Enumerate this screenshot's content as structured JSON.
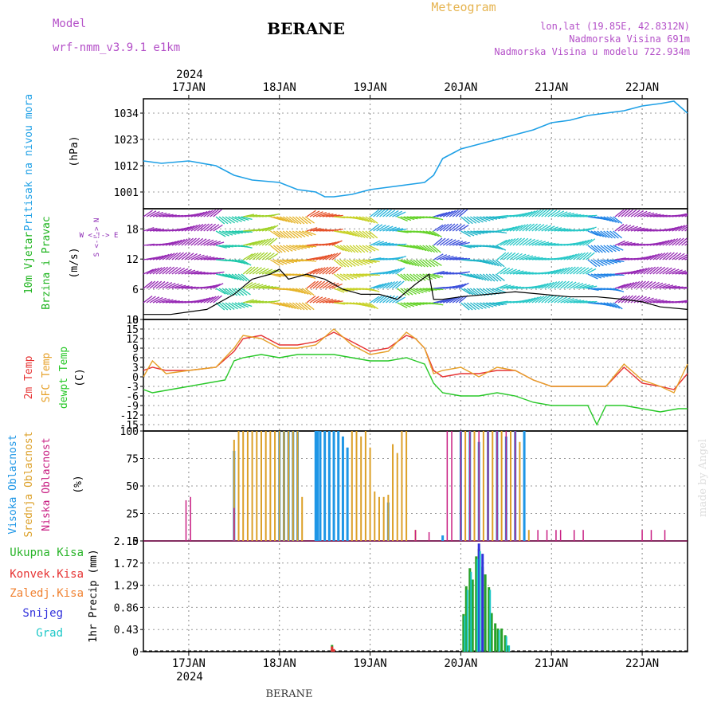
{
  "header": {
    "model_label": "Model",
    "model_name": "wrf-nmm_v3.9.1 e1km",
    "station": "BERANE",
    "meteogram": "Meteogram",
    "coords": "lon,lat (19.85E, 42.8312N)",
    "altitude": "Nadmorska Visina 691m",
    "model_altitude": "Nadmorska Visina u modelu 722.934m"
  },
  "footer": {
    "station": "BERANE",
    "credit": "made by Angel"
  },
  "time_axis": {
    "year": "2024",
    "dates": [
      "17JAN",
      "18JAN",
      "19JAN",
      "20JAN",
      "21JAN",
      "22JAN"
    ],
    "range": [
      16.5,
      22.5
    ]
  },
  "colors": {
    "pressure": "#1ea0e6",
    "temp": "#e63232",
    "sfc_temp": "#e6a028",
    "dewpt": "#28c828",
    "high_cloud": "#1e96e6",
    "mid_cloud": "#dca028",
    "low_cloud": "#c81e82",
    "total_precip": "#28a028",
    "conv_precip": "#e63232",
    "frz_precip": "#f08232",
    "snow": "#3232dc",
    "graupel": "#1ec8c8",
    "wind_label": "#1eb41e",
    "wind_purple": "#8c28b4"
  },
  "panels": {
    "pressure": {
      "label1": "Pritisak na nivou mora",
      "label2": "(hPa)",
      "ticks": [
        "1034",
        "1023",
        "1012",
        "1001"
      ]
    },
    "wind": {
      "label1": "10m Vjetar",
      "label2": "Brzina i Pravac",
      "label3": "(m/s)",
      "compass": "W <-!-> E",
      "compass2": "S <-!-> N",
      "ticks": [
        "18",
        "12",
        "6",
        "0"
      ]
    },
    "temp": {
      "label1": "2m Temp",
      "label2": "SFC Temp",
      "label3": "dewpt Temp",
      "label4": "(C)",
      "ticks": [
        "18",
        "15",
        "12",
        "9",
        "6",
        "3",
        "0",
        "-3",
        "-6",
        "-9",
        "-12",
        "-15"
      ]
    },
    "cloud": {
      "label1": "Visoka Oblacnost",
      "label2": "Srednja Oblacnost",
      "label3": "Niska Oblacnost",
      "label4": "(%)",
      "ticks": [
        "100",
        "75",
        "50",
        "25",
        "0"
      ]
    },
    "precip": {
      "label": "1hr Precip (mm)",
      "ticks": [
        "2.15",
        "1.72",
        "1.29",
        "0.86",
        "0.43",
        "0"
      ],
      "legend": [
        "Ukupna Kisa",
        "Konvek.Kisa",
        "Zaledj.Kisa",
        "Snijeg",
        "Grad"
      ]
    }
  },
  "chart_data": [
    {
      "type": "line",
      "title": "Pritisak na nivou mora",
      "ylabel": "(hPa)",
      "ylim": [
        994,
        1040
      ],
      "x_unit": "day of January 2024",
      "series": [
        {
          "name": "Pritisak na nivou mora",
          "x": [
            16.5,
            16.7,
            17.0,
            17.3,
            17.5,
            17.7,
            18.0,
            18.2,
            18.4,
            18.5,
            18.6,
            18.8,
            19.0,
            19.2,
            19.4,
            19.6,
            19.7,
            19.8,
            20.0,
            20.2,
            20.4,
            20.6,
            20.8,
            21.0,
            21.2,
            21.4,
            21.6,
            21.8,
            22.0,
            22.2,
            22.35,
            22.5
          ],
          "values": [
            1014,
            1013,
            1014,
            1012,
            1008,
            1006,
            1005,
            1002,
            1001,
            999,
            999,
            1000,
            1002,
            1003,
            1004,
            1005,
            1008,
            1015,
            1019,
            1021,
            1023,
            1025,
            1027,
            1030,
            1031,
            1033,
            1034,
            1035,
            1037,
            1038,
            1039,
            1034
          ]
        }
      ]
    },
    {
      "type": "line",
      "title": "10m Vjetar Brzina i Pravac",
      "ylabel": "(m/s)",
      "ylim": [
        0,
        22
      ],
      "x_unit": "day of January 2024",
      "series": [
        {
          "name": "10m Vjetar",
          "x": [
            16.5,
            16.8,
            17.0,
            17.2,
            17.3,
            17.5,
            17.7,
            17.9,
            18.0,
            18.1,
            18.3,
            18.5,
            18.7,
            18.9,
            19.1,
            19.3,
            19.5,
            19.65,
            19.7,
            19.8,
            20.0,
            20.3,
            20.6,
            20.9,
            21.2,
            21.5,
            21.8,
            22.0,
            22.2,
            22.5
          ],
          "values": [
            1,
            1,
            1.5,
            2,
            3,
            5,
            8,
            9,
            10,
            8,
            9,
            8,
            6,
            5,
            5,
            4,
            7,
            9,
            4,
            4,
            4.5,
            5,
            5.5,
            5,
            4.5,
            4.5,
            4,
            3.5,
            2.5,
            2
          ]
        }
      ]
    },
    {
      "type": "line",
      "title": "2m Temp / SFC Temp / dewpt Temp",
      "ylabel": "(C)",
      "ylim": [
        -17,
        18
      ],
      "x_unit": "day of January 2024",
      "series": [
        {
          "name": "2m Temp",
          "x": [
            16.5,
            16.6,
            16.75,
            17.0,
            17.3,
            17.5,
            17.6,
            17.8,
            18.0,
            18.2,
            18.4,
            18.6,
            18.8,
            19.0,
            19.2,
            19.4,
            19.5,
            19.6,
            19.7,
            19.8,
            20.0,
            20.2,
            20.4,
            20.6,
            20.8,
            21.0,
            21.2,
            21.4,
            21.6,
            21.8,
            22.0,
            22.2,
            22.35,
            22.5
          ],
          "values": [
            2,
            3,
            2,
            2,
            3,
            8,
            12,
            13,
            10,
            10,
            11,
            14,
            11,
            8,
            9,
            13,
            12,
            9,
            2,
            0,
            1,
            1,
            2,
            2,
            -1,
            -3,
            -3,
            -3,
            -3,
            3,
            -2,
            -3,
            -4,
            1
          ]
        },
        {
          "name": "SFC Temp",
          "x": [
            16.5,
            16.6,
            16.75,
            17.0,
            17.3,
            17.5,
            17.6,
            17.8,
            18.0,
            18.2,
            18.4,
            18.6,
            18.8,
            19.0,
            19.2,
            19.4,
            19.5,
            19.6,
            19.7,
            19.8,
            20.0,
            20.2,
            20.4,
            20.6,
            20.8,
            21.0,
            21.2,
            21.4,
            21.6,
            21.8,
            22.0,
            22.2,
            22.35,
            22.5
          ],
          "values": [
            0,
            5,
            1,
            2,
            3,
            9,
            13,
            12,
            9,
            9,
            10,
            15,
            10,
            7,
            8,
            14,
            12,
            9,
            1,
            2,
            3,
            0,
            3,
            2,
            -1,
            -3,
            -3,
            -3,
            -3,
            4,
            -1,
            -3,
            -5,
            4
          ]
        },
        {
          "name": "dewpt Temp",
          "x": [
            16.5,
            16.6,
            16.8,
            17.0,
            17.2,
            17.4,
            17.5,
            17.6,
            17.8,
            18.0,
            18.2,
            18.4,
            18.6,
            18.8,
            19.0,
            19.2,
            19.4,
            19.5,
            19.6,
            19.7,
            19.8,
            20.0,
            20.2,
            20.4,
            20.6,
            20.8,
            21.0,
            21.2,
            21.4,
            21.5,
            21.6,
            21.8,
            22.0,
            22.2,
            22.4,
            22.5
          ],
          "values": [
            -4,
            -5,
            -4,
            -3,
            -2,
            -1,
            5,
            6,
            7,
            6,
            7,
            7,
            7,
            6,
            5,
            5,
            6,
            5,
            4,
            -2,
            -5,
            -6,
            -6,
            -5,
            -6,
            -8,
            -9,
            -9,
            -9,
            -15,
            -9,
            -9,
            -10,
            -11,
            -10,
            -10
          ]
        }
      ]
    },
    {
      "type": "bar",
      "title": "Oblacnost",
      "ylabel": "(%)",
      "ylim": [
        0,
        100
      ],
      "x_unit": "day of January 2024",
      "series": [
        {
          "name": "Visoka Oblacnost",
          "x": [
            17.5,
            18.0,
            18.05,
            18.1,
            18.15,
            18.2,
            18.4,
            18.42,
            18.45,
            18.5,
            18.55,
            18.6,
            18.65,
            18.7,
            18.75,
            19.2,
            19.8,
            20.0,
            20.1,
            20.2,
            20.3,
            20.4,
            20.5,
            20.6,
            20.7
          ],
          "values": [
            82,
            100,
            100,
            100,
            100,
            100,
            100,
            100,
            100,
            100,
            100,
            100,
            100,
            95,
            85,
            35,
            5,
            100,
            100,
            90,
            100,
            100,
            95,
            100,
            100
          ]
        },
        {
          "name": "Srednja Oblacnost",
          "x": [
            17.5,
            17.55,
            17.6,
            17.65,
            17.7,
            17.75,
            17.8,
            17.85,
            17.9,
            17.95,
            18.0,
            18.05,
            18.1,
            18.15,
            18.2,
            18.25,
            18.8,
            18.85,
            18.9,
            18.95,
            19.0,
            19.05,
            19.1,
            19.15,
            19.2,
            19.25,
            19.3,
            19.35,
            19.4,
            19.5,
            20.05,
            20.15,
            20.25,
            20.35,
            20.45,
            20.55,
            20.65,
            20.75
          ],
          "values": [
            92,
            100,
            100,
            100,
            100,
            100,
            100,
            100,
            100,
            100,
            100,
            100,
            100,
            100,
            100,
            40,
            100,
            100,
            95,
            100,
            85,
            45,
            40,
            40,
            42,
            88,
            80,
            100,
            100,
            10,
            100,
            100,
            100,
            100,
            100,
            100,
            90,
            10
          ]
        },
        {
          "name": "Niska Oblacnost",
          "x": [
            16.97,
            17.02,
            17.5,
            19.5,
            19.65,
            19.85,
            19.9,
            20.0,
            20.1,
            20.2,
            20.3,
            20.4,
            20.5,
            20.6,
            20.85,
            20.95,
            21.05,
            21.1,
            21.25,
            21.35,
            22.0,
            22.1,
            22.25
          ],
          "values": [
            37,
            40,
            30,
            10,
            8,
            100,
            100,
            100,
            100,
            100,
            100,
            100,
            100,
            100,
            10,
            10,
            10,
            10,
            10,
            10,
            10,
            10,
            10
          ]
        }
      ]
    },
    {
      "type": "bar",
      "title": "1hr Precip",
      "ylabel": "1hr Precip (mm)",
      "ylim": [
        0,
        2.15
      ],
      "x_unit": "day of January 2024",
      "series": [
        {
          "name": "Ukupna Kisa",
          "x": [
            18.58,
            20.03,
            20.06,
            20.1,
            20.13,
            20.17,
            20.2,
            20.24,
            20.27,
            20.31,
            20.34,
            20.38,
            20.41,
            20.45,
            20.49,
            20.52,
            20.56,
            20.59
          ],
          "values": [
            0.13,
            0.73,
            1.27,
            1.62,
            1.4,
            1.85,
            2.0,
            1.65,
            1.5,
            1.25,
            0.75,
            0.55,
            0.45,
            0.45,
            0.32,
            0.12,
            0,
            0
          ]
        },
        {
          "name": "Konvek.Kisa",
          "x": [
            18.58,
            18.6
          ],
          "values": [
            0.1,
            0.05
          ]
        },
        {
          "name": "Snijeg",
          "x": [
            20.2,
            20.24
          ],
          "values": [
            2.1,
            1.9
          ]
        },
        {
          "name": "Grad",
          "x": [
            20.03,
            20.06,
            20.1,
            20.17,
            20.2,
            20.31,
            20.41,
            20.49,
            20.52
          ],
          "values": [
            0.7,
            1.2,
            1.55,
            1.8,
            1.95,
            1.2,
            0.42,
            0.3,
            0.12
          ]
        }
      ]
    }
  ]
}
